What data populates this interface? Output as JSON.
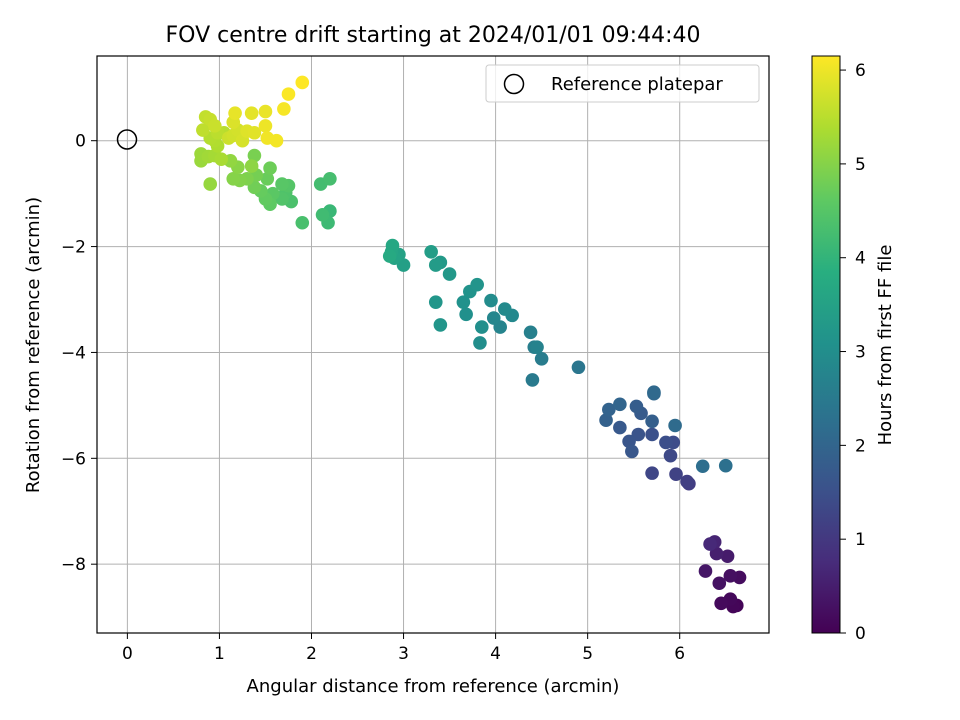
{
  "chart_data": {
    "type": "scatter",
    "title": "FOV centre drift starting at 2024/01/01 09:44:40",
    "xlabel": "Angular distance from reference (arcmin)",
    "ylabel": "Rotation from reference (arcmin)",
    "xlim": [
      -0.33,
      6.97
    ],
    "ylim": [
      -9.3,
      1.6
    ],
    "x_ticks": [
      0,
      1,
      2,
      3,
      4,
      5,
      6
    ],
    "y_ticks": [
      -8,
      -6,
      -4,
      -2,
      0
    ],
    "grid": true,
    "legend": {
      "placement": "top-right",
      "entries": [
        "Reference platepar"
      ]
    },
    "reference_point": {
      "x": 0,
      "y": 0,
      "label": "Reference platepar"
    },
    "colorbar": {
      "label": "Hours from first FF file",
      "range": [
        0,
        6.15
      ],
      "ticks": [
        0,
        1,
        2,
        3,
        4,
        5,
        6
      ],
      "colormap": "viridis"
    },
    "series": [
      {
        "columns": [
          "x",
          "y",
          "hours"
        ],
        "points": [
          [
            6.62,
            -8.78,
            0.05
          ],
          [
            6.58,
            -8.8,
            0.08
          ],
          [
            6.55,
            -8.66,
            0.12
          ],
          [
            6.45,
            -8.74,
            0.16
          ],
          [
            6.65,
            -8.25,
            0.2
          ],
          [
            6.55,
            -8.22,
            0.25
          ],
          [
            6.43,
            -8.36,
            0.3
          ],
          [
            6.28,
            -8.13,
            0.36
          ],
          [
            6.52,
            -7.85,
            0.45
          ],
          [
            6.4,
            -7.8,
            0.52
          ],
          [
            6.38,
            -7.58,
            0.62
          ],
          [
            6.33,
            -7.62,
            0.7
          ],
          [
            6.1,
            -6.48,
            1.1
          ],
          [
            6.08,
            -6.44,
            1.15
          ],
          [
            5.96,
            -6.3,
            1.2
          ],
          [
            5.7,
            -6.28,
            1.28
          ],
          [
            5.9,
            -5.95,
            1.35
          ],
          [
            5.93,
            -5.7,
            1.42
          ],
          [
            5.85,
            -5.7,
            1.48
          ],
          [
            5.7,
            -5.55,
            1.52
          ],
          [
            5.55,
            -5.55,
            1.58
          ],
          [
            5.45,
            -5.68,
            1.62
          ],
          [
            5.48,
            -5.87,
            1.65
          ],
          [
            5.35,
            -5.42,
            1.7
          ],
          [
            5.58,
            -5.15,
            1.75
          ],
          [
            5.53,
            -5.02,
            1.8
          ],
          [
            5.7,
            -5.3,
            1.85
          ],
          [
            5.2,
            -5.28,
            1.9
          ],
          [
            5.23,
            -5.08,
            1.95
          ],
          [
            5.35,
            -4.98,
            2.0
          ],
          [
            5.72,
            -4.78,
            2.05
          ],
          [
            5.72,
            -4.75,
            2.1
          ],
          [
            5.95,
            -5.38,
            2.15
          ],
          [
            6.25,
            -6.15,
            2.2
          ],
          [
            6.5,
            -6.14,
            2.25
          ],
          [
            4.9,
            -4.28,
            2.4
          ],
          [
            4.4,
            -4.52,
            2.5
          ],
          [
            4.5,
            -4.12,
            2.55
          ],
          [
            4.42,
            -3.9,
            2.6
          ],
          [
            4.38,
            -3.62,
            2.65
          ],
          [
            4.45,
            -3.9,
            2.7
          ],
          [
            4.05,
            -3.52,
            2.75
          ],
          [
            3.98,
            -3.35,
            2.8
          ],
          [
            4.18,
            -3.3,
            2.85
          ],
          [
            4.1,
            -3.18,
            2.9
          ],
          [
            3.95,
            -3.02,
            2.95
          ],
          [
            3.83,
            -3.82,
            3.0
          ],
          [
            3.85,
            -3.52,
            3.03
          ],
          [
            3.68,
            -3.28,
            3.06
          ],
          [
            3.65,
            -3.05,
            3.09
          ],
          [
            3.72,
            -2.85,
            3.12
          ],
          [
            3.8,
            -2.72,
            3.15
          ],
          [
            3.4,
            -3.48,
            3.18
          ],
          [
            3.35,
            -3.05,
            3.2
          ],
          [
            3.5,
            -2.52,
            3.25
          ],
          [
            3.4,
            -2.3,
            3.3
          ],
          [
            3.35,
            -2.35,
            3.35
          ],
          [
            3.3,
            -2.1,
            3.4
          ],
          [
            3.0,
            -2.35,
            3.45
          ],
          [
            2.95,
            -2.15,
            3.5
          ],
          [
            2.9,
            -2.22,
            3.55
          ],
          [
            2.87,
            -2.1,
            3.6
          ],
          [
            2.88,
            -1.98,
            3.65
          ],
          [
            2.85,
            -2.18,
            3.7
          ],
          [
            2.2,
            -1.33,
            4.1
          ],
          [
            2.18,
            -1.55,
            4.15
          ],
          [
            2.12,
            -1.4,
            4.2
          ],
          [
            2.1,
            -0.82,
            4.25
          ],
          [
            2.2,
            -0.72,
            4.28
          ],
          [
            1.9,
            -1.55,
            4.32
          ],
          [
            1.78,
            -1.15,
            4.36
          ],
          [
            1.72,
            -0.98,
            4.4
          ],
          [
            1.68,
            -1.1,
            4.44
          ],
          [
            1.75,
            -0.85,
            4.48
          ],
          [
            1.68,
            -0.82,
            4.52
          ],
          [
            1.58,
            -1.0,
            4.56
          ],
          [
            1.55,
            -1.2,
            4.6
          ],
          [
            1.5,
            -1.1,
            4.64
          ],
          [
            1.45,
            -0.95,
            4.68
          ],
          [
            1.52,
            -0.72,
            4.72
          ],
          [
            1.55,
            -0.52,
            4.76
          ],
          [
            1.38,
            -0.88,
            4.8
          ],
          [
            1.4,
            -0.65,
            4.84
          ],
          [
            1.38,
            -0.28,
            4.88
          ],
          [
            1.3,
            -0.72,
            4.92
          ],
          [
            1.22,
            -0.75,
            4.96
          ],
          [
            1.15,
            -0.72,
            5.0
          ],
          [
            1.2,
            -0.5,
            5.04
          ],
          [
            1.35,
            -0.48,
            5.08
          ],
          [
            1.12,
            -0.38,
            5.12
          ],
          [
            0.9,
            -0.82,
            5.16
          ],
          [
            0.8,
            -0.38,
            5.2
          ],
          [
            0.8,
            -0.25,
            5.22
          ],
          [
            0.88,
            -0.3,
            5.26
          ],
          [
            0.95,
            -0.28,
            5.3
          ],
          [
            1.02,
            -0.35,
            5.34
          ],
          [
            0.98,
            -0.1,
            5.38
          ],
          [
            0.95,
            0.0,
            5.42
          ],
          [
            0.9,
            0.05,
            5.45
          ],
          [
            1.05,
            0.15,
            5.48
          ],
          [
            0.98,
            0.15,
            5.52
          ],
          [
            0.82,
            0.2,
            5.55
          ],
          [
            0.85,
            0.45,
            5.58
          ],
          [
            0.9,
            0.4,
            5.62
          ],
          [
            0.95,
            0.28,
            5.65
          ],
          [
            1.1,
            0.05,
            5.68
          ],
          [
            1.15,
            0.1,
            5.72
          ],
          [
            1.2,
            0.2,
            5.75
          ],
          [
            1.25,
            0.0,
            5.78
          ],
          [
            1.15,
            0.35,
            5.82
          ],
          [
            1.3,
            0.18,
            5.85
          ],
          [
            1.38,
            0.15,
            5.88
          ],
          [
            1.35,
            0.52,
            5.91
          ],
          [
            1.17,
            0.52,
            5.94
          ],
          [
            1.5,
            0.55,
            5.97
          ],
          [
            1.5,
            0.28,
            6.0
          ],
          [
            1.52,
            0.05,
            6.03
          ],
          [
            1.62,
            0.0,
            6.05
          ],
          [
            1.7,
            0.6,
            6.08
          ],
          [
            1.75,
            0.88,
            6.12
          ],
          [
            1.9,
            1.1,
            6.15
          ]
        ]
      }
    ]
  }
}
